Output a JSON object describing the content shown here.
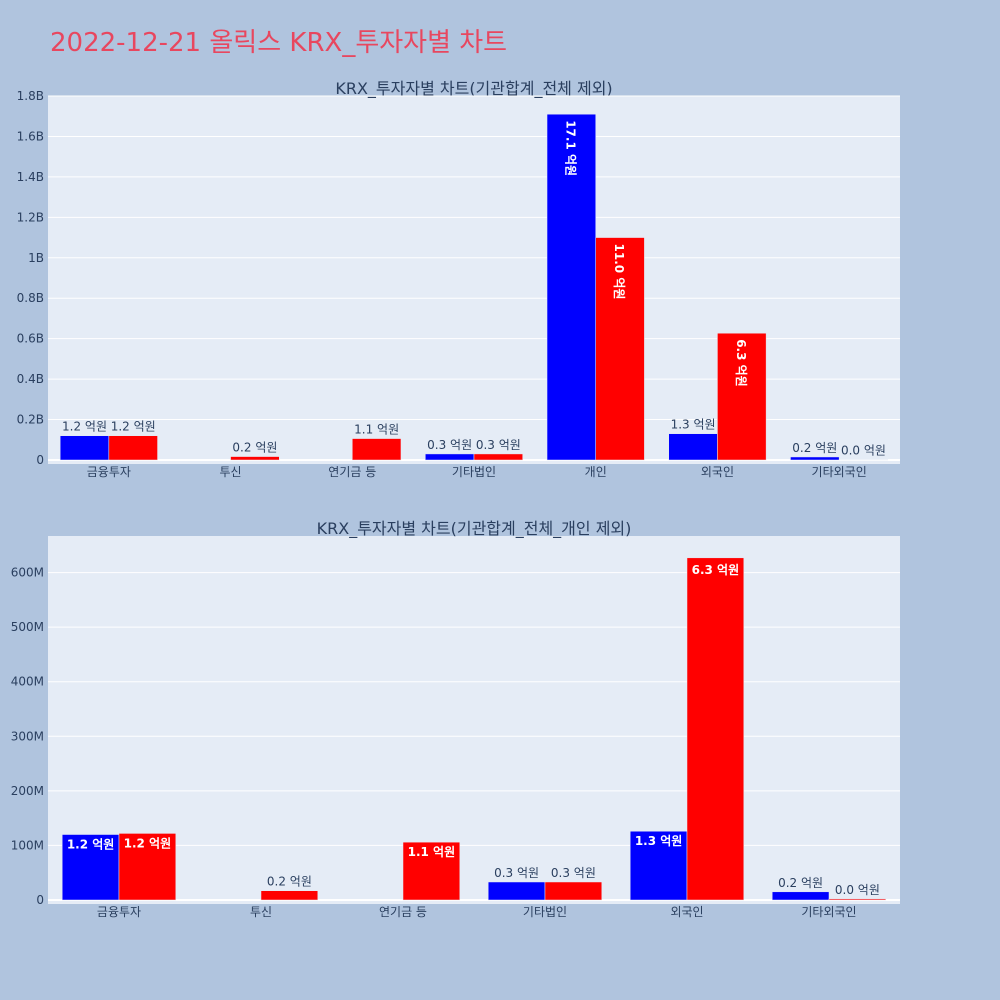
{
  "title": "2022-12-21 올릭스 KRX_투자자별 차트",
  "colors": {
    "buy": "#0000ff",
    "sell": "#ff0000",
    "plot_bg": "#e5ecf6",
    "page_bg": "#b0c4de",
    "title": "#e8475f"
  },
  "chart_data": [
    {
      "type": "bar",
      "title": "KRX_투자자별 차트(기관합계_전체 제외)",
      "categories": [
        "금융투자",
        "투신",
        "연기금 등",
        "기타법인",
        "개인",
        "외국인",
        "기타외국인"
      ],
      "series": [
        {
          "values": [
            120000000,
            0,
            0,
            30000000,
            1710000000,
            130000000,
            15000000
          ],
          "labels": [
            "1.2 억원",
            "",
            "",
            "0.3 억원",
            "17.1 억원",
            "1.3 억원",
            "0.2 억원"
          ]
        },
        {
          "values": [
            120000000,
            17000000,
            106000000,
            30000000,
            1100000000,
            627000000,
            2000000
          ],
          "labels": [
            "1.2 억원",
            "0.2 억원",
            "1.1 억원",
            "0.3 억원",
            "11.0 억원",
            "6.3 억원",
            "0.0 억원"
          ]
        }
      ],
      "ylim": [
        0,
        1800000000
      ],
      "yticks": [
        0,
        200000000,
        400000000,
        600000000,
        800000000,
        1000000000,
        1200000000,
        1400000000,
        1600000000,
        1800000000
      ],
      "ytick_labels": [
        "0",
        "0.2B",
        "0.4B",
        "0.6B",
        "0.8B",
        "1B",
        "1.2B",
        "1.4B",
        "1.6B",
        "1.8B"
      ],
      "grid": true
    },
    {
      "type": "bar",
      "title": "KRX_투자자별 차트(기관합계_전체_개인 제외)",
      "categories": [
        "금융투자",
        "투신",
        "연기금 등",
        "기타법인",
        "외국인",
        "기타외국인"
      ],
      "series": [
        {
          "values": [
            120000000,
            0,
            0,
            33000000,
            126000000,
            15000000
          ],
          "labels": [
            "1.2 억원",
            "",
            "",
            "0.3 억원",
            "1.3 억원",
            "0.2 억원"
          ]
        },
        {
          "values": [
            122000000,
            17000000,
            106000000,
            33000000,
            627000000,
            2000000
          ],
          "labels": [
            "1.2 억원",
            "0.2 억원",
            "1.1 억원",
            "0.3 억원",
            "6.3 억원",
            "0.0 억원"
          ]
        }
      ],
      "ylim": [
        0,
        667000000
      ],
      "yticks": [
        0,
        100000000,
        200000000,
        300000000,
        400000000,
        500000000,
        600000000
      ],
      "ytick_labels": [
        "0",
        "100M",
        "200M",
        "300M",
        "400M",
        "500M",
        "600M"
      ],
      "grid": true
    }
  ]
}
